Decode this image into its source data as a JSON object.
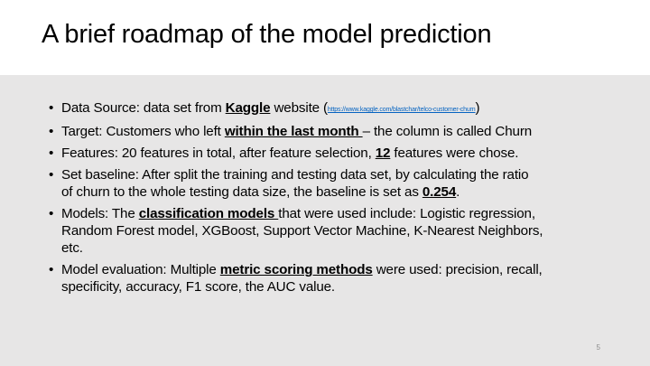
{
  "slide": {
    "title": "A brief roadmap of the model prediction",
    "page_number": "5",
    "bullet_glyph": "•",
    "bullets": [
      {
        "pre": "Data Source: data set from ",
        "emph": "Kaggle",
        "mid": " website (",
        "link": "https://www.kaggle.com/blastchar/telco-customer-churn",
        "post": ")"
      },
      {
        "pre": "Target: Customers who left ",
        "emph": "within the last month ",
        "post": "– the column is called Churn"
      },
      {
        "pre": "Features: 20 features in total, after feature selection, ",
        "emph": "12",
        "post": " features were chose."
      },
      {
        "line1": "Set baseline: After split the training and testing data set, by calculating the ratio",
        "pre": "of churn to the whole testing data size, the baseline is set as ",
        "emph": "0.254",
        "post": "."
      },
      {
        "pre": "Models: The ",
        "emph": "classification models ",
        "post": "that were used include: Logistic regression,",
        "line2": "Random Forest model, XGBoost, Support Vector Machine, K-Nearest Neighbors,",
        "line3": "etc."
      },
      {
        "pre": "Model evaluation: Multiple ",
        "emph": "metric scoring methods",
        "post": " were used: precision, recall,",
        "line2": "specificity, accuracy, F1 score, the AUC value."
      }
    ]
  }
}
